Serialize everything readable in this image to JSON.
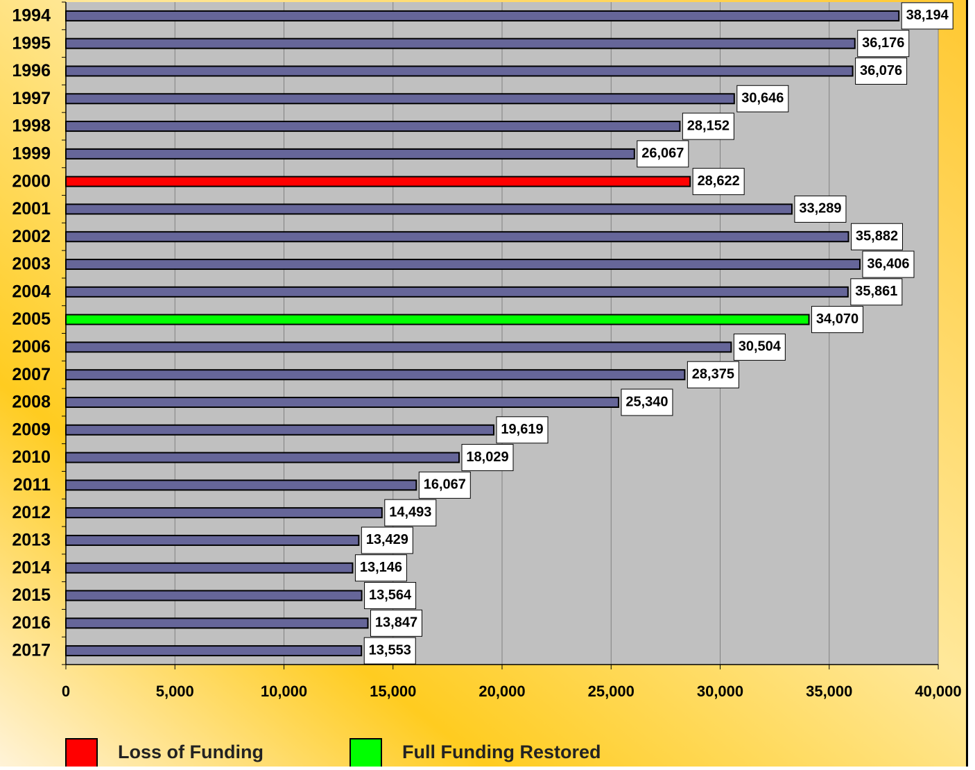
{
  "chart_data": {
    "type": "hbar",
    "categories": [
      "1994",
      "1995",
      "1996",
      "1997",
      "1998",
      "1999",
      "2000",
      "2001",
      "2002",
      "2003",
      "2004",
      "2005",
      "2006",
      "2007",
      "2008",
      "2009",
      "2010",
      "2011",
      "2012",
      "2013",
      "2014",
      "2015",
      "2016",
      "2017"
    ],
    "values": [
      38194,
      36176,
      36076,
      30646,
      28152,
      26067,
      28622,
      33289,
      35882,
      36406,
      35861,
      34070,
      30504,
      28375,
      25340,
      19619,
      18029,
      16067,
      14493,
      13429,
      13146,
      13564,
      13847,
      13553
    ],
    "value_labels": [
      "38,194",
      "36,176",
      "36,076",
      "30,646",
      "28,152",
      "26,067",
      "28,622",
      "33,289",
      "35,882",
      "36,406",
      "35,861",
      "34,070",
      "30,504",
      "28,375",
      "25,340",
      "19,619",
      "18,029",
      "16,067",
      "14,493",
      "13,429",
      "13,146",
      "13,564",
      "13,847",
      "13,553"
    ],
    "colors": [
      "#666699",
      "#666699",
      "#666699",
      "#666699",
      "#666699",
      "#666699",
      "#ff0000",
      "#666699",
      "#666699",
      "#666699",
      "#666699",
      "#00ff00",
      "#666699",
      "#666699",
      "#666699",
      "#666699",
      "#666699",
      "#666699",
      "#666699",
      "#666699",
      "#666699",
      "#666699",
      "#666699",
      "#666699"
    ],
    "xlim": [
      0,
      40000
    ],
    "xticks": [
      0,
      {
        "value": 5000,
        "label": "5,000"
      },
      {
        "value": 10000,
        "label": "10,000"
      },
      {
        "value": 15000,
        "label": "15,000"
      },
      {
        "value": 20000,
        "label": "20,000"
      },
      {
        "value": 25000,
        "label": "25,000"
      },
      {
        "value": 30000,
        "label": "30,000"
      },
      {
        "value": 35000,
        "label": "35,000"
      },
      {
        "value": 40000,
        "label": "40,000"
      }
    ],
    "grid": true,
    "legend": [
      {
        "name": "Loss of Funding",
        "color": "#ff0000"
      },
      {
        "name": "Full Funding Restored",
        "color": "#00ff00"
      }
    ]
  }
}
